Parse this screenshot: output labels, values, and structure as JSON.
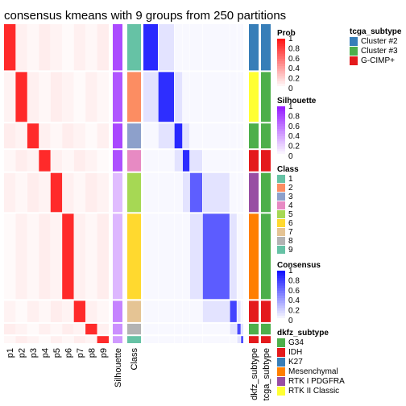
{
  "chart_data": {
    "type": "heatmap",
    "title": "consensus kmeans with 9 groups from 250 partitions",
    "prob_columns": [
      "p1",
      "p2",
      "p3",
      "p4",
      "p5",
      "p6",
      "p7",
      "p8",
      "p9"
    ],
    "annotation_columns": [
      "Silhouette",
      "Class"
    ],
    "right_annotation_columns": [
      "dkfz_subtype",
      "tcga_subtype"
    ],
    "class_colors": {
      "1": "#66C2A5",
      "2": "#FC8D62",
      "3": "#8DA0CB",
      "4": "#E78AC3",
      "5": "#A6D854",
      "6": "#FFD92F",
      "7": "#E5C494",
      "8": "#B3B3B3",
      "9": "#66C2A5"
    },
    "groups": [
      {
        "label": "1",
        "n": 13,
        "silhouette": 0.8
      },
      {
        "label": "2",
        "n": 14,
        "silhouette": 0.75
      },
      {
        "label": "3",
        "n": 7,
        "silhouette": 0.82
      },
      {
        "label": "4",
        "n": 6,
        "silhouette": 0.78
      },
      {
        "label": "5",
        "n": 11,
        "silhouette": 0.3
      },
      {
        "label": "6",
        "n": 24,
        "silhouette": 0.32
      },
      {
        "label": "7",
        "n": 6,
        "silhouette": 0.55
      },
      {
        "label": "8",
        "n": 3,
        "silhouette": 0.5
      },
      {
        "label": "9",
        "n": 2,
        "silhouette": 0.45
      }
    ],
    "legends": {
      "prob": {
        "title": "Prob",
        "ticks": [
          "1",
          "0.8",
          "0.6",
          "0.4",
          "0.2",
          "0"
        ]
      },
      "silhouette": {
        "title": "Silhouette",
        "ticks": [
          "1",
          "0.8",
          "0.6",
          "0.4",
          "0.2",
          "0"
        ]
      },
      "class": {
        "title": "Class",
        "items": [
          {
            "label": "1",
            "color": "#66C2A5"
          },
          {
            "label": "2",
            "color": "#FC8D62"
          },
          {
            "label": "3",
            "color": "#8DA0CB"
          },
          {
            "label": "4",
            "color": "#E78AC3"
          },
          {
            "label": "5",
            "color": "#A6D854"
          },
          {
            "label": "6",
            "color": "#FFD92F"
          },
          {
            "label": "7",
            "color": "#E5C494"
          },
          {
            "label": "8",
            "color": "#B3B3B3"
          },
          {
            "label": "9",
            "color": "#66C2A5"
          }
        ]
      },
      "consensus": {
        "title": "Consensus",
        "ticks": [
          "1",
          "0.8",
          "0.6",
          "0.4",
          "0.2",
          "0"
        ]
      },
      "tcga_subtype": {
        "title": "tcga_subtype",
        "items": [
          {
            "label": "Cluster #2",
            "color": "#377EB8"
          },
          {
            "label": "Cluster #3",
            "color": "#4DAF4A"
          },
          {
            "label": "G-CIMP+",
            "color": "#E41A1C"
          }
        ]
      },
      "dkfz_subtype": {
        "title": "dkfz_subtype",
        "items": [
          {
            "label": "G34",
            "color": "#4DAF4A"
          },
          {
            "label": "IDH",
            "color": "#E41A1C"
          },
          {
            "label": "K27",
            "color": "#377EB8"
          },
          {
            "label": "Mesenchymal",
            "color": "#FF7F00"
          },
          {
            "label": "RTK I PDGFRA",
            "color": "#984EA3"
          },
          {
            "label": "RTK II Classic",
            "color": "#FFFF33"
          }
        ]
      }
    },
    "row_subtypes": [
      {
        "group": "1",
        "dkfz": "K27",
        "tcga": "Cluster #2"
      },
      {
        "group": "2",
        "dkfz": "RTK II Classic",
        "tcga": "Cluster #3"
      },
      {
        "group": "3",
        "dkfz": "G34",
        "tcga": "Cluster #3"
      },
      {
        "group": "4",
        "dkfz": "IDH",
        "tcga": "G-CIMP+"
      },
      {
        "group": "5",
        "dkfz": "RTK I PDGFRA",
        "tcga": "Cluster #3"
      },
      {
        "group": "6",
        "dkfz": "Mesenchymal",
        "tcga": "Cluster #3"
      },
      {
        "group": "7",
        "dkfz": "IDH",
        "tcga": "G-CIMP+"
      },
      {
        "group": "8",
        "dkfz": "G34",
        "tcga": "Cluster #3"
      },
      {
        "group": "9",
        "dkfz": "IDH",
        "tcga": "G-CIMP+"
      }
    ]
  }
}
